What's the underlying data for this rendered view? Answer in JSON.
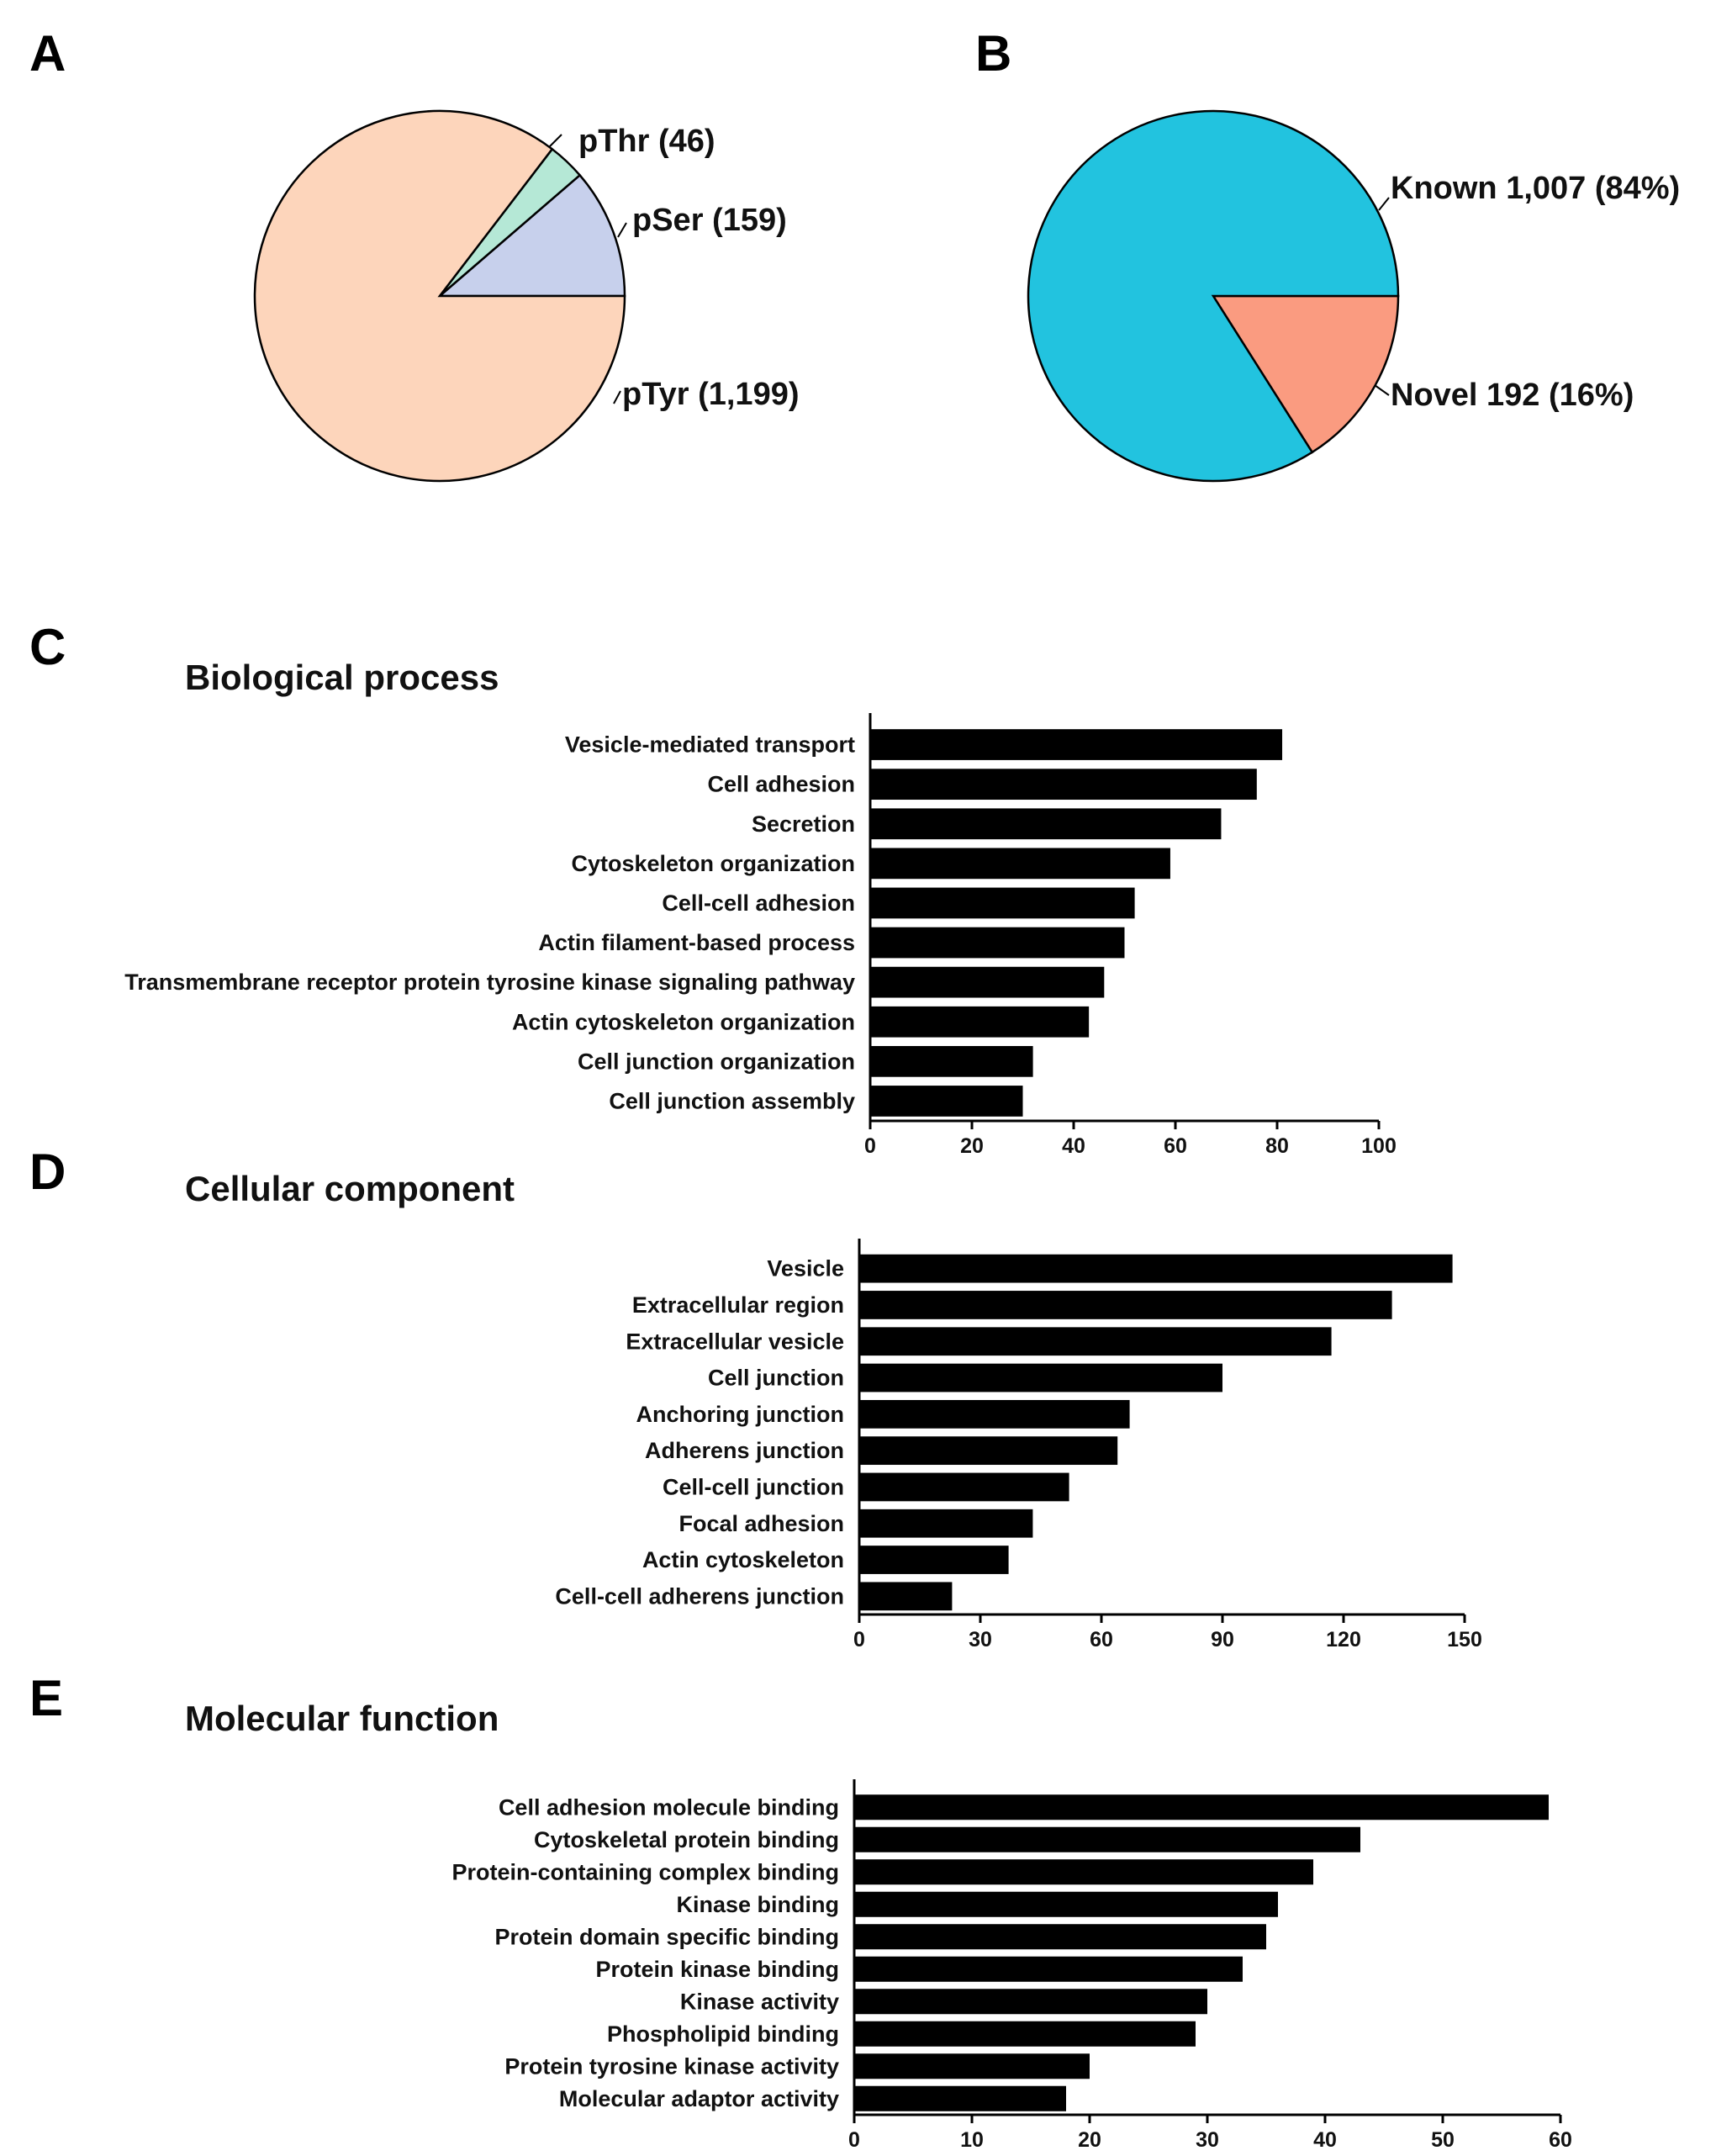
{
  "chart_data": [
    {
      "panel": "A",
      "type": "pie",
      "title": "",
      "slices": [
        {
          "label": "pThr (46)",
          "value": 46,
          "color": "#b5e8d6"
        },
        {
          "label": "pSer (159)",
          "value": 159,
          "color": "#c7d0ec"
        },
        {
          "label": "pTyr (1,199)",
          "value": 1199,
          "color": "#fdd5bb"
        }
      ]
    },
    {
      "panel": "B",
      "type": "pie",
      "title": "",
      "slices": [
        {
          "label": "Known 1,007 (84%)",
          "value": 1007,
          "color": "#22c3df"
        },
        {
          "label": "Novel 192 (16%)",
          "value": 192,
          "color": "#fa9b80"
        }
      ]
    },
    {
      "panel": "C",
      "type": "bar",
      "orientation": "horizontal",
      "title": "Biological process",
      "categories": [
        "Vesicle-mediated transport",
        "Cell adhesion",
        "Secretion",
        "Cytoskeleton organization",
        "Cell-cell adhesion",
        "Actin filament-based process",
        "Transmembrane receptor protein tyrosine kinase signaling pathway",
        "Actin cytoskeleton organization",
        "Cell junction organization",
        "Cell junction assembly"
      ],
      "values": [
        81,
        76,
        69,
        59,
        52,
        50,
        46,
        43,
        32,
        30
      ],
      "xlim": [
        0,
        100
      ],
      "ticks": [
        "0",
        "20",
        "40",
        "60",
        "80",
        "100"
      ],
      "xlabel": "",
      "ylabel": ""
    },
    {
      "panel": "D",
      "type": "bar",
      "orientation": "horizontal",
      "title": "Cellular component",
      "categories": [
        "Vesicle",
        "Extracellular region",
        "Extracellular vesicle",
        "Cell junction",
        "Anchoring junction",
        "Adherens junction",
        "Cell-cell junction",
        "Focal adhesion",
        "Actin cytoskeleton",
        "Cell-cell adherens junction"
      ],
      "values": [
        147,
        132,
        117,
        90,
        67,
        64,
        52,
        43,
        37,
        23
      ],
      "xlim": [
        0,
        150
      ],
      "ticks": [
        "0",
        "30",
        "60",
        "90",
        "120",
        "150"
      ],
      "xlabel": "",
      "ylabel": ""
    },
    {
      "panel": "E",
      "type": "bar",
      "orientation": "horizontal",
      "title": "Molecular function",
      "categories": [
        "Cell adhesion molecule binding",
        "Cytoskeletal protein binding",
        "Protein-containing complex binding",
        "Kinase binding",
        "Protein domain specific binding",
        "Protein kinase binding",
        "Kinase activity",
        "Phospholipid binding",
        "Protein tyrosine kinase activity",
        "Molecular adaptor activity"
      ],
      "values": [
        59,
        43,
        39,
        36,
        35,
        33,
        30,
        29,
        20,
        18
      ],
      "xlim": [
        0,
        60
      ],
      "ticks": [
        "0",
        "10",
        "20",
        "30",
        "40",
        "50",
        "60"
      ],
      "xlabel": "",
      "ylabel": ""
    }
  ]
}
